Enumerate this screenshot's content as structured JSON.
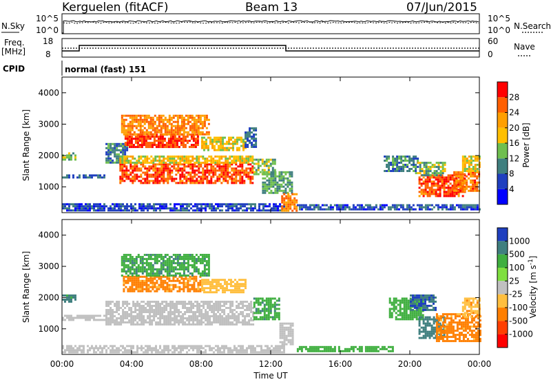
{
  "header": {
    "station": "Kerguelen (fitACF)",
    "beam": "Beam 13",
    "date": "07/Jun/2015"
  },
  "noise_panel": {
    "left_label": "N.Sky",
    "right_label": "N.Search",
    "left_ticks": [
      "10^5",
      "10^0"
    ],
    "right_ticks": [
      "10^5",
      "10^0"
    ]
  },
  "freq_panel": {
    "left_label_1": "Freq.",
    "left_label_2": "[MHz]",
    "right_label": "Nave",
    "left_ticks": [
      "18",
      "8"
    ],
    "right_ticks": [
      "60",
      "0"
    ],
    "cpid_label": "CPID",
    "cpid_value": "normal (fast) 151"
  },
  "colors": {
    "power_scale": [
      "#0000ff",
      "#1f3fbf",
      "#3f7f7f",
      "#6fbf4f",
      "#ffbf00",
      "#ff9f00",
      "#ff5f00",
      "#ff0000"
    ],
    "velocity_scale": [
      "#1f3fbf",
      "#3f7f7f",
      "#3faf3f",
      "#7fdf3f",
      "#c0c0c0",
      "#ffbf3f",
      "#ff7f00",
      "#ff3f00",
      "#ff0000"
    ],
    "ground_scatter": "#c0c0c0"
  },
  "chart_data": [
    {
      "type": "heatmap",
      "title": "Power",
      "xlabel": "Time UT",
      "ylabel": "Slant Range [km]",
      "x_ticks": [
        "00:00",
        "04:00",
        "08:00",
        "12:00",
        "16:00",
        "20:00",
        "00:00"
      ],
      "xlim_hours": [
        0,
        24
      ],
      "y_ticks": [
        1000,
        2000,
        3000,
        4000
      ],
      "ylim": [
        180,
        4500
      ],
      "colorbar": {
        "label": "Power [dB]",
        "ticks": [
          4,
          8,
          12,
          16,
          20,
          24,
          28
        ],
        "range": [
          0,
          32
        ]
      },
      "regions": [
        {
          "t0": 0.0,
          "t1": 12.8,
          "r0": 220,
          "r1": 480,
          "val": 6
        },
        {
          "t0": 0.0,
          "t1": 2.5,
          "r0": 1300,
          "r1": 1400,
          "val": 8
        },
        {
          "t0": 0.0,
          "t1": 0.8,
          "r0": 1900,
          "r1": 2100,
          "val": 14
        },
        {
          "t0": 2.5,
          "t1": 3.8,
          "r0": 1800,
          "r1": 2400,
          "val": 10
        },
        {
          "t0": 3.3,
          "t1": 11.0,
          "r0": 1150,
          "r1": 1750,
          "val": 27
        },
        {
          "t0": 3.3,
          "t1": 11.0,
          "r0": 1750,
          "r1": 2000,
          "val": 18
        },
        {
          "t0": 3.6,
          "t1": 7.8,
          "r0": 2300,
          "r1": 2700,
          "val": 28
        },
        {
          "t0": 3.4,
          "t1": 8.5,
          "r0": 2700,
          "r1": 3300,
          "val": 24
        },
        {
          "t0": 8.0,
          "t1": 10.5,
          "r0": 2200,
          "r1": 2600,
          "val": 18
        },
        {
          "t0": 10.5,
          "t1": 11.2,
          "r0": 2300,
          "r1": 2900,
          "val": 8
        },
        {
          "t0": 11.0,
          "t1": 12.3,
          "r0": 1400,
          "r1": 1900,
          "val": 14
        },
        {
          "t0": 11.5,
          "t1": 13.2,
          "r0": 800,
          "r1": 1500,
          "val": 12
        },
        {
          "t0": 12.6,
          "t1": 13.5,
          "r0": 250,
          "r1": 800,
          "val": 24
        },
        {
          "t0": 13.5,
          "t1": 24.0,
          "r0": 280,
          "r1": 450,
          "val": 7
        },
        {
          "t0": 18.5,
          "t1": 20.5,
          "r0": 1500,
          "r1": 2000,
          "val": 10
        },
        {
          "t0": 20.5,
          "t1": 23.2,
          "r0": 700,
          "r1": 1400,
          "val": 27
        },
        {
          "t0": 20.3,
          "t1": 22.0,
          "r0": 1400,
          "r1": 1800,
          "val": 14
        },
        {
          "t0": 22.5,
          "t1": 24.0,
          "r0": 900,
          "r1": 1500,
          "val": 25
        },
        {
          "t0": 23.0,
          "t1": 24.0,
          "r0": 1500,
          "r1": 2000,
          "val": 18
        }
      ]
    },
    {
      "type": "heatmap",
      "title": "Velocity",
      "xlabel": "Time UT",
      "ylabel": "Slant Range [km]",
      "x_ticks": [
        "00:00",
        "04:00",
        "08:00",
        "12:00",
        "16:00",
        "20:00",
        "00:00"
      ],
      "xlim_hours": [
        0,
        24
      ],
      "y_ticks": [
        1000,
        2000,
        3000,
        4000
      ],
      "ylim": [
        180,
        4500
      ],
      "colorbar": {
        "label": "Velocity [m s^-1]",
        "ticks": [
          "1000",
          "500",
          "100",
          "25",
          "-25",
          "-100",
          "-500",
          "-1000"
        ]
      },
      "regions": [
        {
          "t0": 0.0,
          "t1": 12.8,
          "r0": 220,
          "r1": 480,
          "vel": 0
        },
        {
          "t0": 0.0,
          "t1": 2.5,
          "r0": 1300,
          "r1": 1450,
          "vel": 0
        },
        {
          "t0": 0.0,
          "t1": 0.8,
          "r0": 1900,
          "r1": 2100,
          "vel": 150
        },
        {
          "t0": 2.5,
          "t1": 11.0,
          "r0": 1150,
          "r1": 1900,
          "vel": 0
        },
        {
          "t0": 3.5,
          "t1": 8.0,
          "r0": 2200,
          "r1": 2700,
          "vel": -150
        },
        {
          "t0": 3.4,
          "t1": 8.5,
          "r0": 2700,
          "r1": 3400,
          "vel": 80
        },
        {
          "t0": 8.0,
          "t1": 10.5,
          "r0": 2200,
          "r1": 2600,
          "vel": -60
        },
        {
          "t0": 11.0,
          "t1": 12.5,
          "r0": 1300,
          "r1": 2000,
          "vel": 80
        },
        {
          "t0": 12.5,
          "t1": 13.3,
          "r0": 500,
          "r1": 1200,
          "vel": 0
        },
        {
          "t0": 13.5,
          "t1": 19.0,
          "r0": 280,
          "r1": 450,
          "vel": 60
        },
        {
          "t0": 18.8,
          "t1": 20.8,
          "r0": 1300,
          "r1": 2000,
          "vel": 60
        },
        {
          "t0": 20.0,
          "t1": 21.5,
          "r0": 1600,
          "r1": 2100,
          "vel": 500
        },
        {
          "t0": 20.5,
          "t1": 22.0,
          "r0": 700,
          "r1": 1400,
          "vel": 200
        },
        {
          "t0": 21.5,
          "t1": 24.0,
          "r0": 600,
          "r1": 1500,
          "vel": -150
        },
        {
          "t0": 23.0,
          "t1": 24.0,
          "r0": 1400,
          "r1": 2000,
          "vel": -80
        }
      ]
    }
  ]
}
